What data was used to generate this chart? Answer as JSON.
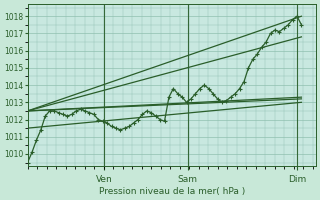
{
  "background_color": "#c8e8d8",
  "plot_bg_color": "#c8e8e0",
  "grid_color": "#90c0b0",
  "line_color": "#2a5e2a",
  "marker_color": "#2a5e2a",
  "ylabel_ticks": [
    1010,
    1011,
    1012,
    1013,
    1014,
    1015,
    1016,
    1017,
    1018
  ],
  "ylim": [
    1009.3,
    1018.7
  ],
  "xlabel": "Pression niveau de la mer( hPa )",
  "day_labels": [
    "Ven",
    "Sam",
    "Dim"
  ],
  "day_positions": [
    0.265,
    0.555,
    0.935
  ],
  "xlim": [
    0,
    1.0
  ],
  "series": {
    "main": [
      1009.5,
      1010.1,
      1010.8,
      1011.4,
      1012.2,
      1012.5,
      1012.5,
      1012.4,
      1012.3,
      1012.2,
      1012.3,
      1012.5,
      1012.6,
      1012.5,
      1012.4,
      1012.3,
      1012.0,
      1011.9,
      1011.8,
      1011.6,
      1011.5,
      1011.4,
      1011.5,
      1011.6,
      1011.8,
      1012.0,
      1012.3,
      1012.5,
      1012.4,
      1012.2,
      1012.0,
      1011.9,
      1013.3,
      1013.8,
      1013.5,
      1013.3,
      1013.0,
      1013.2,
      1013.5,
      1013.8,
      1014.0,
      1013.8,
      1013.5,
      1013.2,
      1013.0,
      1013.1,
      1013.3,
      1013.5,
      1013.8,
      1014.2,
      1015.0,
      1015.5,
      1015.8,
      1016.2,
      1016.5,
      1017.0,
      1017.2,
      1017.1,
      1017.3,
      1017.5,
      1017.8,
      1018.0,
      1017.5
    ],
    "upper_line": [
      [
        0.0,
        1012.5
      ],
      [
        0.95,
        1018.0
      ]
    ],
    "mid_upper_line": [
      [
        0.0,
        1012.5
      ],
      [
        0.95,
        1016.8
      ]
    ],
    "mid_line": [
      [
        0.0,
        1012.5
      ],
      [
        0.95,
        1013.3
      ]
    ],
    "lower_line": [
      [
        0.0,
        1012.5
      ],
      [
        0.95,
        1013.2
      ]
    ],
    "extra_low_line": [
      [
        0.0,
        1011.5
      ],
      [
        0.95,
        1013.0
      ]
    ]
  }
}
